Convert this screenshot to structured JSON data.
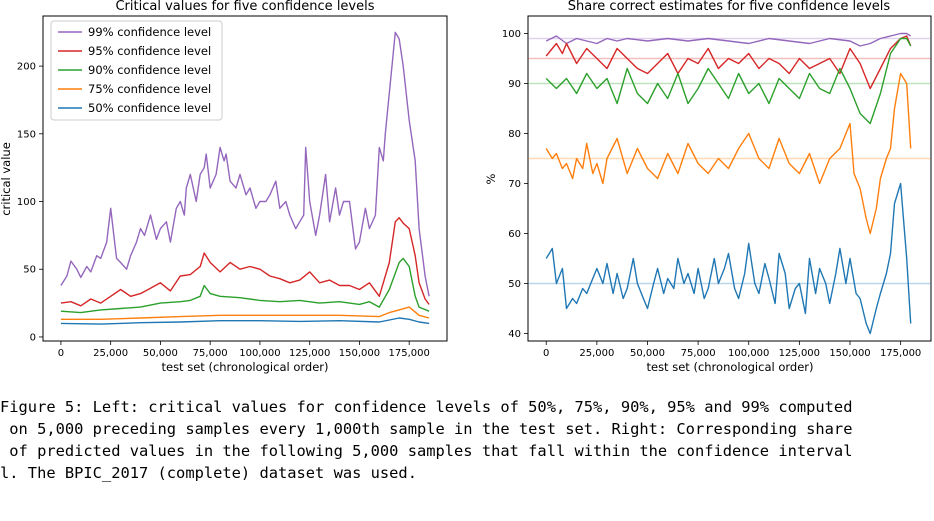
{
  "figure": {
    "caption_lines": [
      "Figure 5: Left: critical values for confidence levels of 50%, 75%, 90%, 95% and 99% computed",
      " on 5,000 preceding samples every 1,000th sample in the test set. Right: Corresponding share",
      " of predicted values in the following 5,000 samples that fall within the confidence interval",
      "l. The BPIC_2017 (complete) dataset was used."
    ]
  },
  "colors": {
    "99": "#9467bd",
    "95": "#d62728",
    "90": "#2ca02c",
    "75": "#ff7f0e",
    "50": "#1f77b4"
  },
  "chart_data": [
    {
      "type": "line",
      "title": "Critical values for five confidence levels",
      "xlabel": "test set (chronological order)",
      "ylabel": "critical value",
      "xlim": [
        -9000,
        194000
      ],
      "ylim": [
        -3,
        237
      ],
      "xticks": [
        0,
        25000,
        50000,
        75000,
        100000,
        125000,
        150000,
        175000
      ],
      "xtick_labels": [
        "0",
        "25,000",
        "50,000",
        "75,000",
        "100,000",
        "125,000",
        "150,000",
        "175,000"
      ],
      "yticks": [
        0,
        50,
        100,
        150,
        200
      ],
      "ytick_labels": [
        "0",
        "50",
        "100",
        "150",
        "200"
      ],
      "legend_position": "upper-left",
      "series": [
        {
          "name": "99% confidence level",
          "key": "99",
          "x": [
            0,
            3000,
            5000,
            8000,
            10000,
            13000,
            15000,
            18000,
            20000,
            23000,
            25000,
            27000,
            28000,
            30000,
            33000,
            35000,
            38000,
            40000,
            42000,
            45000,
            48000,
            50000,
            53000,
            55000,
            58000,
            60000,
            62000,
            63000,
            65000,
            68000,
            70000,
            72000,
            73000,
            75000,
            78000,
            80000,
            82000,
            83000,
            85000,
            88000,
            90000,
            93000,
            95000,
            98000,
            100000,
            103000,
            105000,
            108000,
            110000,
            113000,
            115000,
            118000,
            120000,
            122000,
            123000,
            125000,
            128000,
            130000,
            133000,
            135000,
            138000,
            140000,
            142000,
            145000,
            148000,
            150000,
            153000,
            155000,
            158000,
            160000,
            162000,
            163000,
            165000,
            168000,
            170000,
            172000,
            175000,
            178000,
            180000,
            183000,
            185000
          ],
          "y": [
            38,
            45,
            56,
            50,
            44,
            52,
            48,
            60,
            58,
            70,
            95,
            70,
            58,
            55,
            50,
            60,
            70,
            80,
            75,
            90,
            72,
            80,
            85,
            70,
            95,
            100,
            90,
            110,
            120,
            100,
            120,
            125,
            135,
            110,
            120,
            140,
            130,
            135,
            115,
            110,
            120,
            105,
            110,
            95,
            100,
            100,
            105,
            115,
            95,
            100,
            90,
            80,
            85,
            90,
            140,
            100,
            75,
            90,
            120,
            85,
            110,
            90,
            100,
            100,
            65,
            70,
            95,
            80,
            90,
            140,
            130,
            150,
            180,
            225,
            220,
            200,
            160,
            130,
            80,
            45,
            30
          ]
        },
        {
          "name": "95% confidence level",
          "key": "95",
          "x": [
            0,
            5000,
            10000,
            15000,
            20000,
            25000,
            30000,
            35000,
            40000,
            45000,
            50000,
            55000,
            60000,
            65000,
            70000,
            72000,
            75000,
            80000,
            85000,
            90000,
            95000,
            100000,
            105000,
            110000,
            115000,
            120000,
            125000,
            130000,
            135000,
            140000,
            145000,
            150000,
            155000,
            160000,
            165000,
            168000,
            170000,
            172000,
            175000,
            178000,
            180000,
            183000,
            185000
          ],
          "y": [
            25,
            26,
            23,
            28,
            25,
            30,
            35,
            30,
            32,
            36,
            40,
            34,
            45,
            46,
            52,
            62,
            55,
            48,
            55,
            50,
            52,
            50,
            45,
            43,
            40,
            42,
            48,
            40,
            42,
            38,
            38,
            35,
            40,
            30,
            55,
            85,
            88,
            84,
            80,
            60,
            40,
            28,
            24
          ]
        },
        {
          "name": "90% confidence level",
          "key": "90",
          "x": [
            0,
            10000,
            20000,
            30000,
            40000,
            50000,
            60000,
            65000,
            70000,
            72000,
            75000,
            80000,
            90000,
            100000,
            110000,
            120000,
            130000,
            140000,
            150000,
            155000,
            160000,
            165000,
            170000,
            172000,
            175000,
            178000,
            180000,
            185000
          ],
          "y": [
            19,
            18,
            20,
            21,
            22,
            25,
            26,
            27,
            30,
            38,
            32,
            30,
            29,
            27,
            26,
            27,
            25,
            26,
            24,
            26,
            22,
            35,
            55,
            58,
            52,
            30,
            22,
            19
          ]
        },
        {
          "name": "75% confidence level",
          "key": "75",
          "x": [
            0,
            20000,
            40000,
            60000,
            80000,
            100000,
            120000,
            140000,
            160000,
            165000,
            170000,
            175000,
            180000,
            185000
          ],
          "y": [
            13,
            13,
            14,
            15,
            16,
            16,
            16,
            16,
            15,
            18,
            20,
            22,
            16,
            14
          ]
        },
        {
          "name": "50% confidence level",
          "key": "50",
          "x": [
            0,
            20000,
            40000,
            60000,
            80000,
            100000,
            120000,
            140000,
            160000,
            170000,
            175000,
            180000,
            185000
          ],
          "y": [
            10,
            9.5,
            10.5,
            11,
            12,
            12,
            11.5,
            12,
            11,
            14,
            13,
            11,
            10
          ]
        }
      ]
    },
    {
      "type": "line",
      "title": "Share correct estimates for five confidence levels",
      "xlabel": "test set (chronological order)",
      "ylabel": "%",
      "xlim": [
        -9000,
        190000
      ],
      "ylim": [
        38.5,
        103.5
      ],
      "xticks": [
        0,
        25000,
        50000,
        75000,
        100000,
        125000,
        150000,
        175000
      ],
      "xtick_labels": [
        "0",
        "25,000",
        "50,000",
        "75,000",
        "100,000",
        "125,000",
        "150,000",
        "175,000"
      ],
      "yticks": [
        40,
        50,
        60,
        70,
        80,
        90,
        100
      ],
      "ytick_labels": [
        "40",
        "50",
        "60",
        "70",
        "80",
        "90",
        "100"
      ],
      "reference_lines": [
        {
          "key": "99",
          "value": 99
        },
        {
          "key": "95",
          "value": 95
        },
        {
          "key": "90",
          "value": 90
        },
        {
          "key": "75",
          "value": 75
        },
        {
          "key": "50",
          "value": 50
        }
      ],
      "series": [
        {
          "key": "99",
          "x": [
            0,
            5000,
            10000,
            15000,
            20000,
            25000,
            30000,
            35000,
            40000,
            50000,
            60000,
            70000,
            80000,
            90000,
            100000,
            110000,
            120000,
            130000,
            140000,
            150000,
            155000,
            160000,
            165000,
            170000,
            175000,
            178000,
            180000
          ],
          "y": [
            98.5,
            99.5,
            98,
            99,
            98.5,
            98,
            99,
            98.5,
            99,
            98.5,
            99,
            98.5,
            99,
            98.5,
            98,
            99,
            98.5,
            98,
            99,
            98.5,
            97.5,
            98,
            99,
            99.5,
            100,
            100,
            99.5
          ]
        },
        {
          "key": "95",
          "x": [
            0,
            3000,
            5000,
            8000,
            10000,
            15000,
            20000,
            25000,
            30000,
            35000,
            40000,
            45000,
            50000,
            55000,
            60000,
            65000,
            70000,
            75000,
            80000,
            85000,
            90000,
            95000,
            100000,
            105000,
            110000,
            115000,
            120000,
            125000,
            130000,
            135000,
            140000,
            145000,
            150000,
            155000,
            160000,
            165000,
            170000,
            175000,
            178000,
            180000
          ],
          "y": [
            95.5,
            97,
            98,
            96,
            98,
            94,
            97,
            95,
            93,
            97,
            95,
            93,
            92,
            94,
            96,
            92,
            95,
            94,
            97,
            93,
            95,
            94,
            96,
            93,
            95,
            94,
            92,
            95,
            93,
            94,
            95,
            92,
            97,
            94,
            89,
            93,
            97,
            99,
            99.5,
            97.5
          ]
        },
        {
          "key": "90",
          "x": [
            0,
            5000,
            10000,
            15000,
            20000,
            25000,
            30000,
            35000,
            40000,
            45000,
            50000,
            55000,
            60000,
            65000,
            70000,
            75000,
            80000,
            85000,
            90000,
            95000,
            100000,
            105000,
            110000,
            115000,
            120000,
            125000,
            130000,
            135000,
            140000,
            145000,
            150000,
            155000,
            160000,
            165000,
            170000,
            175000,
            178000,
            180000
          ],
          "y": [
            91,
            89,
            91,
            88,
            92,
            89,
            91,
            86,
            93,
            88,
            86,
            90,
            87,
            92,
            86,
            89,
            93,
            90,
            87,
            92,
            88,
            90,
            86,
            91,
            89,
            87,
            92,
            89,
            88,
            93,
            89,
            84,
            82,
            88,
            96,
            99,
            99,
            97.5
          ]
        },
        {
          "key": "75",
          "x": [
            0,
            3000,
            5000,
            8000,
            10000,
            13000,
            15000,
            18000,
            20000,
            23000,
            25000,
            28000,
            30000,
            35000,
            40000,
            45000,
            50000,
            55000,
            60000,
            65000,
            70000,
            75000,
            80000,
            85000,
            90000,
            95000,
            100000,
            105000,
            110000,
            115000,
            120000,
            125000,
            130000,
            135000,
            140000,
            145000,
            150000,
            152000,
            155000,
            158000,
            160000,
            163000,
            165000,
            168000,
            170000,
            172000,
            175000,
            178000,
            180000
          ],
          "y": [
            77,
            75,
            76,
            73,
            74,
            71,
            75,
            73,
            78,
            72,
            74,
            70,
            75,
            79,
            72,
            77,
            73,
            71,
            76,
            72,
            78,
            74,
            72,
            75,
            73,
            77,
            80,
            75,
            73,
            79,
            74,
            72,
            76,
            70,
            75,
            77,
            82,
            72,
            69,
            63,
            60,
            65,
            71,
            75,
            77,
            85,
            92,
            90,
            77
          ]
        },
        {
          "key": "50",
          "x": [
            0,
            3000,
            5000,
            8000,
            10000,
            13000,
            15000,
            18000,
            20000,
            23000,
            25000,
            28000,
            30000,
            33000,
            35000,
            38000,
            40000,
            43000,
            45000,
            48000,
            50000,
            53000,
            55000,
            58000,
            60000,
            63000,
            65000,
            68000,
            70000,
            73000,
            75000,
            78000,
            80000,
            83000,
            85000,
            88000,
            90000,
            93000,
            95000,
            98000,
            100000,
            103000,
            105000,
            108000,
            110000,
            113000,
            115000,
            118000,
            120000,
            123000,
            125000,
            128000,
            130000,
            133000,
            135000,
            138000,
            140000,
            143000,
            145000,
            148000,
            150000,
            153000,
            155000,
            158000,
            160000,
            163000,
            165000,
            168000,
            170000,
            172000,
            175000,
            178000,
            180000
          ],
          "y": [
            55,
            57,
            50,
            53,
            45,
            47,
            46,
            49,
            48,
            51,
            53,
            50,
            54,
            48,
            52,
            47,
            49,
            55,
            50,
            47,
            45,
            50,
            53,
            48,
            51,
            49,
            55,
            50,
            52,
            48,
            53,
            47,
            49,
            55,
            50,
            53,
            56,
            49,
            47,
            52,
            58,
            50,
            48,
            54,
            51,
            46,
            56,
            52,
            45,
            49,
            50,
            44,
            55,
            48,
            53,
            50,
            46,
            52,
            57,
            50,
            55,
            48,
            47,
            42,
            40,
            45,
            48,
            52,
            56,
            66,
            70,
            55,
            42
          ]
        }
      ]
    }
  ]
}
